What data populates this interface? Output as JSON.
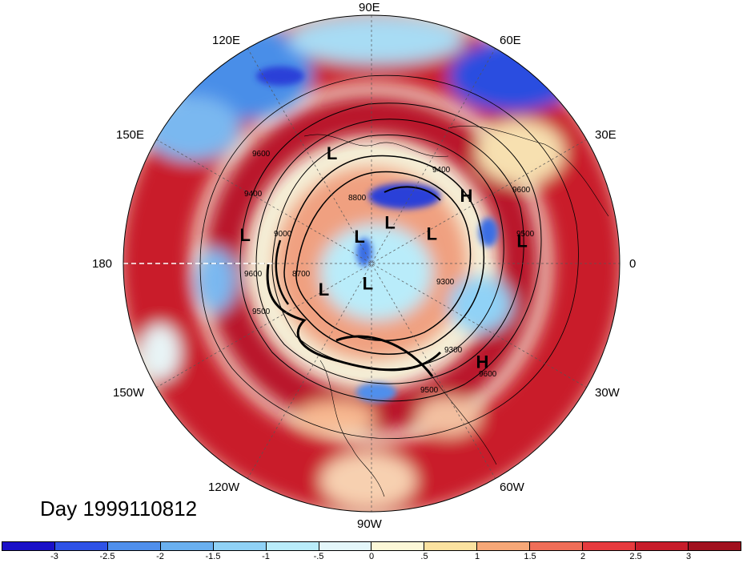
{
  "title": "Day 1999110812",
  "longitude_labels": {
    "e90": "90E",
    "e60": "60E",
    "e30": "30E",
    "zero": "0",
    "w30": "30W",
    "w60": "60W",
    "w90": "90W",
    "w120": "120W",
    "w150": "150W",
    "d180": "180",
    "e150": "150E",
    "e120": "120E"
  },
  "pressure_systems": [
    {
      "type": "L",
      "lon": 110,
      "lat": 40
    },
    {
      "type": "H",
      "lon": 35,
      "lat": 40
    },
    {
      "type": "L",
      "lon": 168,
      "lat": 35
    },
    {
      "type": "L",
      "lon": 65,
      "lat": 70
    },
    {
      "type": "L",
      "lon": 25,
      "lat": 60
    },
    {
      "type": "L",
      "lon": 8,
      "lat": 27
    },
    {
      "type": "L",
      "lon": 115,
      "lat": 77
    },
    {
      "type": "L",
      "lon": -150,
      "lat": 65
    },
    {
      "type": "L",
      "lon": -100,
      "lat": 80
    },
    {
      "type": "H",
      "lon": -42,
      "lat": 28
    }
  ],
  "contour_labels": [
    "9600",
    "9500",
    "9400",
    "9300",
    "9000",
    "8700",
    "8800"
  ],
  "colorbar": {
    "colors": [
      "#1a10c8",
      "#2e52e6",
      "#4f8fec",
      "#6ab0f0",
      "#90d2f6",
      "#b9ecfa",
      "#e4f7fa",
      "#fdf8d8",
      "#fbe2a0",
      "#f7a878",
      "#f06e58",
      "#e63a3e",
      "#c71c2a",
      "#a1101e"
    ],
    "ticks": [
      "-3",
      "-2.5",
      "-2",
      "-1.5",
      "-1",
      "-.5",
      "0",
      ".5",
      "1",
      "1.5",
      "2",
      "2.5",
      "3"
    ]
  }
}
